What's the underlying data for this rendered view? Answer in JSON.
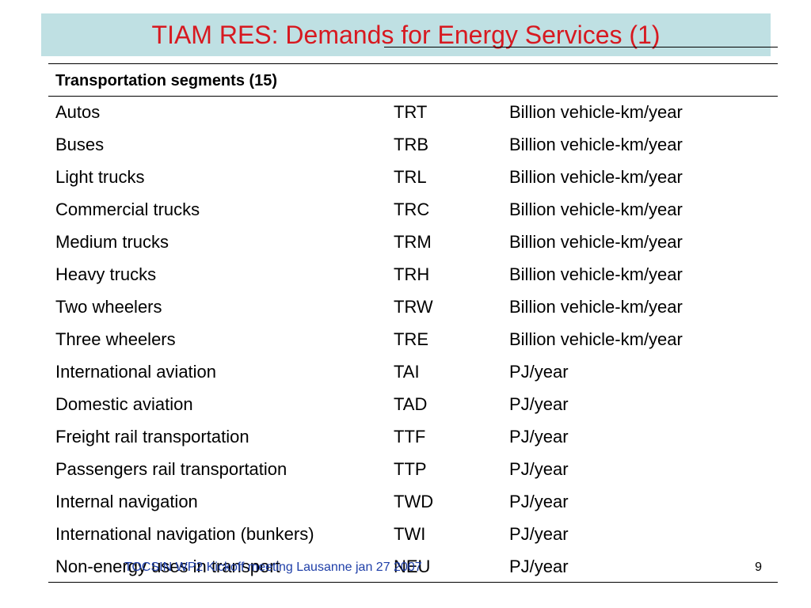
{
  "slide": {
    "title": "TIAM RES: Demands for Energy Services (1)",
    "table": {
      "header": "Transportation segments (15)",
      "rows": [
        {
          "segment": "Autos",
          "code": "TRT",
          "unit": "Billion vehicle-km/year"
        },
        {
          "segment": "Buses",
          "code": "TRB",
          "unit": "Billion vehicle-km/year"
        },
        {
          "segment": "Light trucks",
          "code": "TRL",
          "unit": "Billion vehicle-km/year"
        },
        {
          "segment": "Commercial trucks",
          "code": "TRC",
          "unit": "Billion vehicle-km/year"
        },
        {
          "segment": "Medium trucks",
          "code": "TRM",
          "unit": "Billion vehicle-km/year"
        },
        {
          "segment": "Heavy trucks",
          "code": "TRH",
          "unit": "Billion vehicle-km/year"
        },
        {
          "segment": "Two wheelers",
          "code": "TRW",
          "unit": "Billion vehicle-km/year"
        },
        {
          "segment": "Three wheelers",
          "code": "TRE",
          "unit": "Billion vehicle-km/year"
        },
        {
          "segment": "International aviation",
          "code": "TAI",
          "unit": "PJ/year"
        },
        {
          "segment": "Domestic aviation",
          "code": "TAD",
          "unit": "PJ/year"
        },
        {
          "segment": "Freight rail transportation",
          "code": "TTF",
          "unit": "PJ/year"
        },
        {
          "segment": "Passengers rail transportation",
          "code": "TTP",
          "unit": "PJ/year"
        },
        {
          "segment": "Internal navigation",
          "code": "TWD",
          "unit": "PJ/year"
        },
        {
          "segment": "International navigation (bunkers)",
          "code": "TWI",
          "unit": "PJ/year"
        },
        {
          "segment": "Non-energy uses in transport",
          "code": "NEU",
          "unit": "PJ/year"
        }
      ]
    },
    "footer": "TOCSIN WP2 Kickoff meeting Lausanne jan 27 2007",
    "page_number": "9",
    "colors": {
      "title_text": "#d71920",
      "title_band": "#bfe0e3",
      "footer_text": "#1f3fa8"
    }
  }
}
